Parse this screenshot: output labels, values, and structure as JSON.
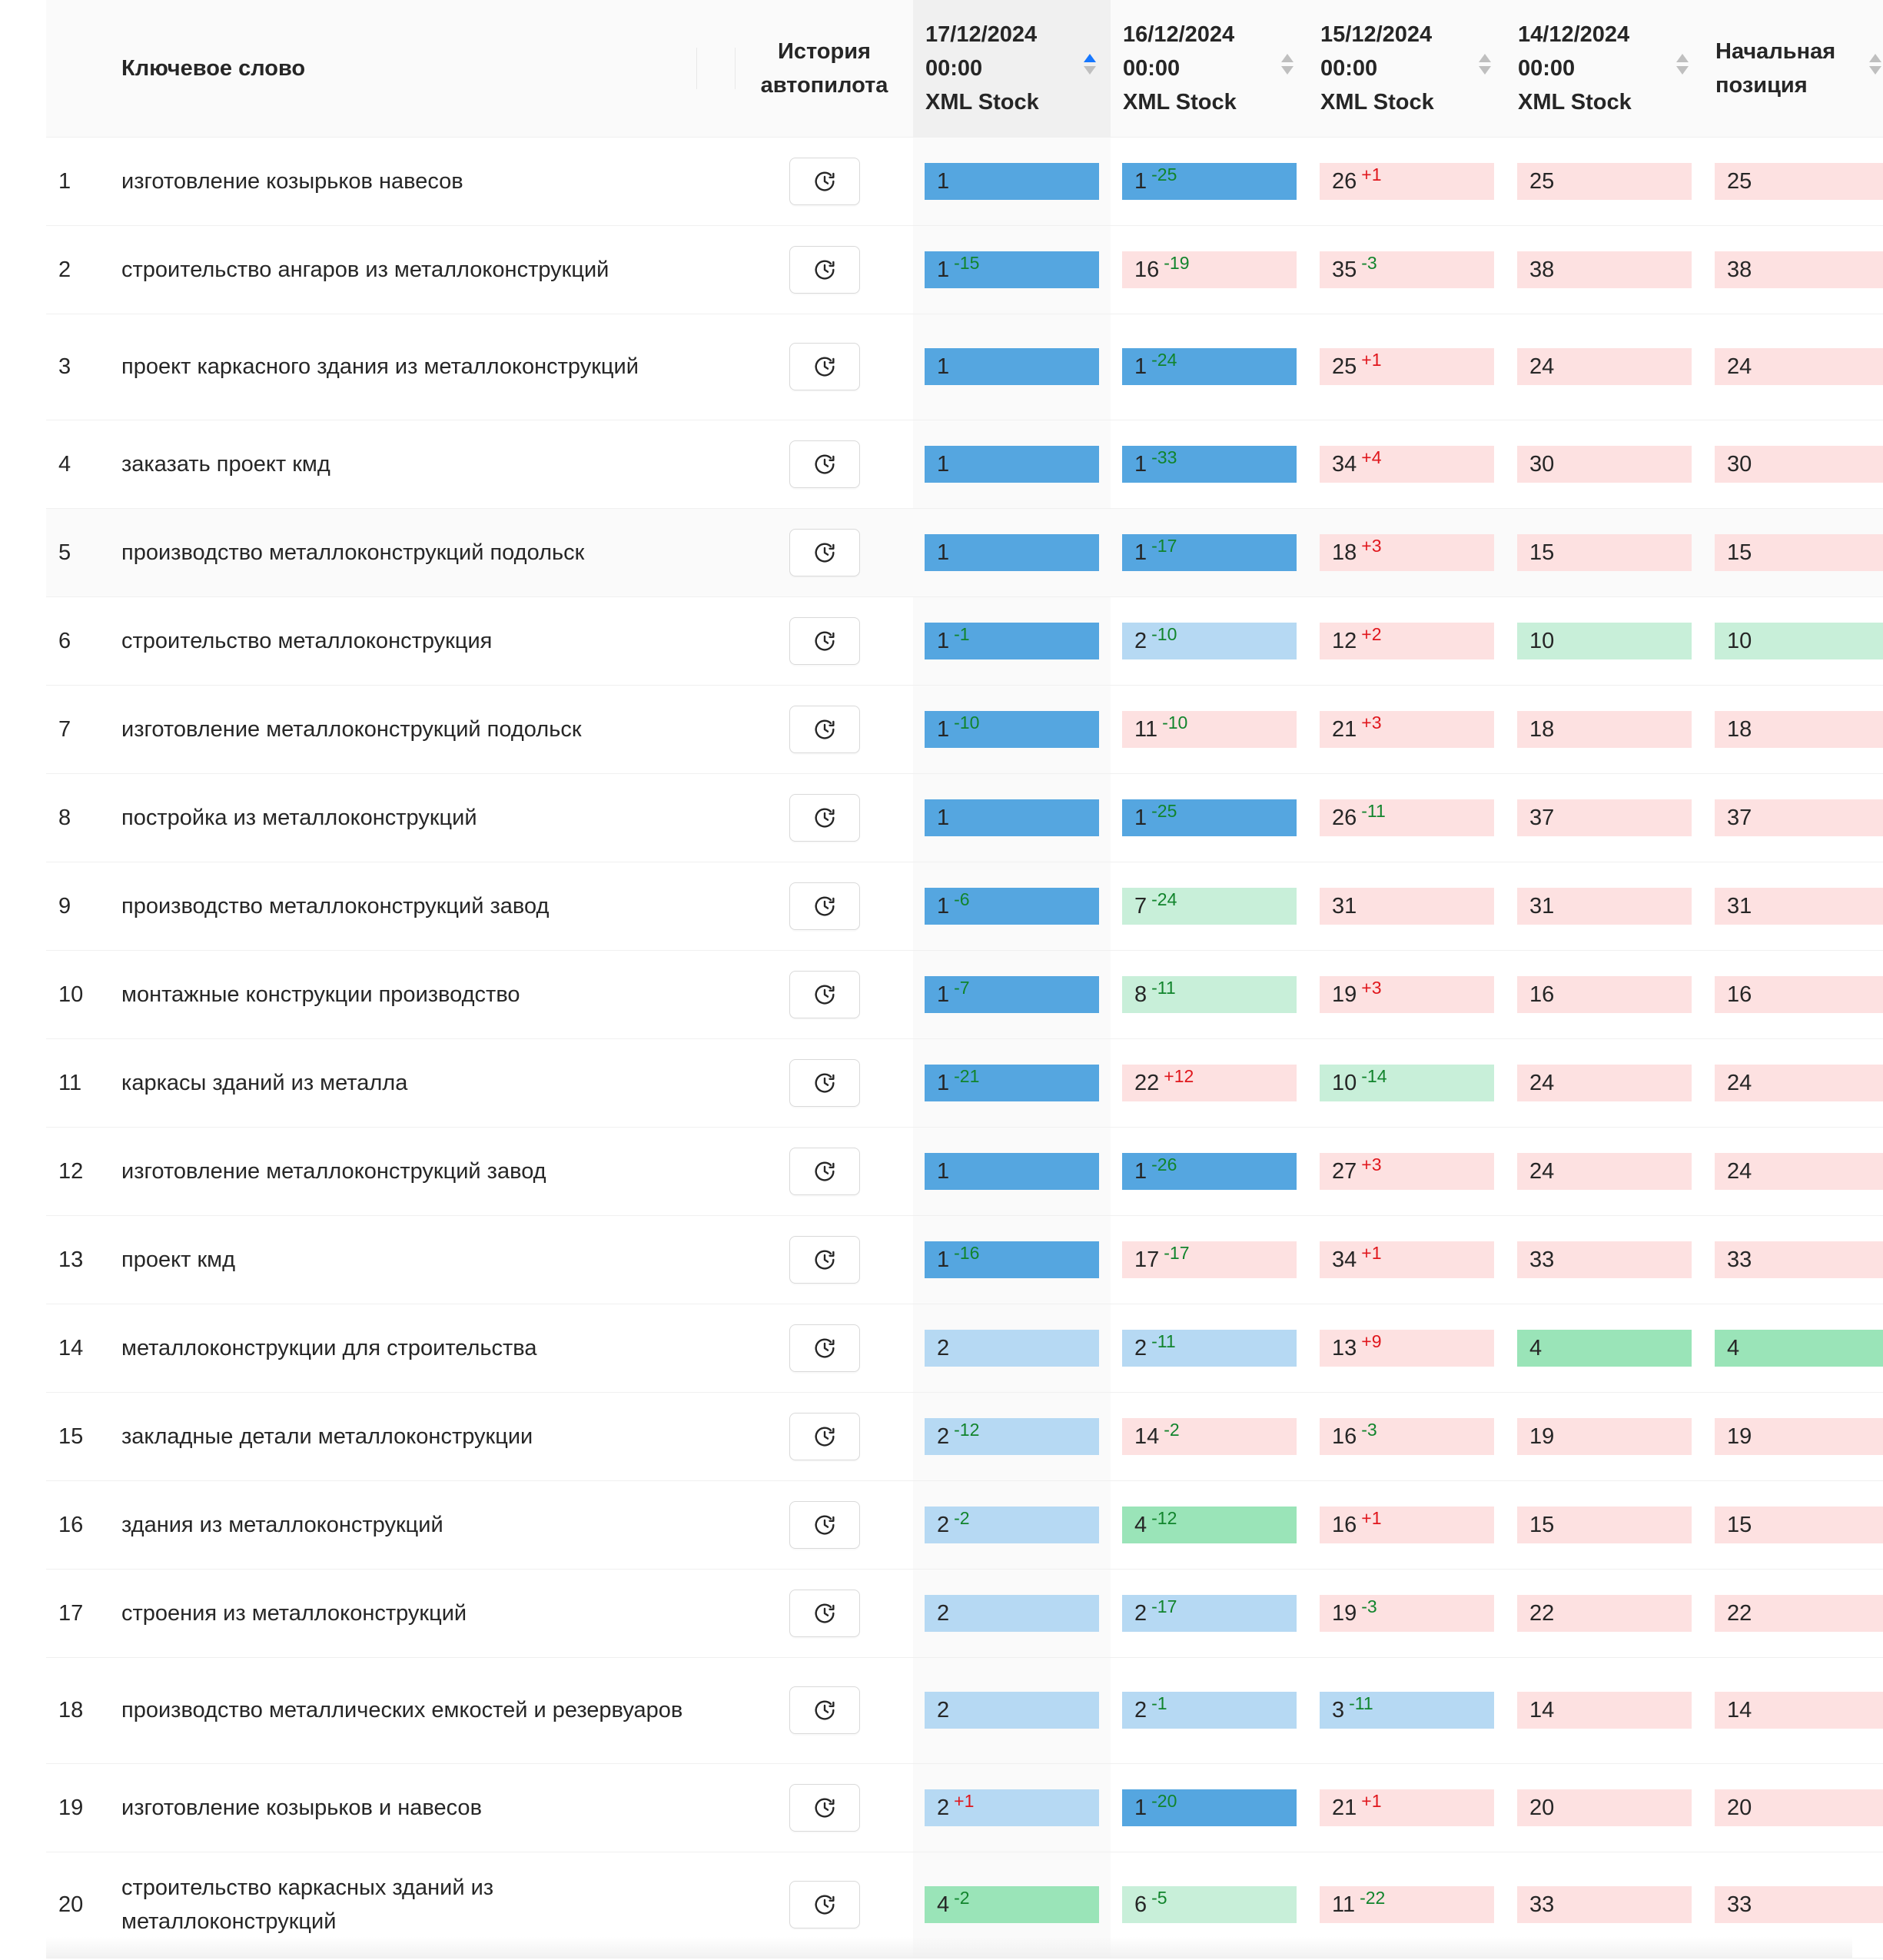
{
  "header": {
    "keyword": "Ключевое слово",
    "history_l1": "История",
    "history_l2": "автопилота",
    "dates": [
      {
        "date": "17/12/2024",
        "time": "00:00",
        "source": "XML Stock",
        "sorted": true
      },
      {
        "date": "16/12/2024",
        "time": "00:00",
        "source": "XML Stock",
        "sorted": false
      },
      {
        "date": "15/12/2024",
        "time": "00:00",
        "source": "XML Stock",
        "sorted": false
      },
      {
        "date": "14/12/2024",
        "time": "00:00",
        "source": "XML Stock",
        "sorted": false
      }
    ],
    "start_l1": "Начальная",
    "start_l2": "позиция"
  },
  "colors": {
    "top1": "#55a6e0",
    "top3": "#b6d9f3",
    "top5": "#9ae4b8",
    "top10": "#c8efd9",
    "low": "#fde1e1",
    "delta_neg": "#11842c",
    "delta_pos": "#e0161c",
    "sort_active": "#1677ff"
  },
  "icons": {
    "history": "history-clock-icon",
    "sort": "sort-caret-icon"
  },
  "rows": [
    {
      "n": "1",
      "kw": "изготовление козырьков навесов",
      "wrap": false,
      "cells": [
        [
          "1",
          ""
        ],
        [
          "1",
          "-25"
        ],
        [
          "26",
          "+1"
        ],
        [
          "25",
          ""
        ]
      ],
      "start": "25"
    },
    {
      "n": "2",
      "kw": "строительство ангаров из металлоконструкций",
      "wrap": false,
      "cells": [
        [
          "1",
          "-15"
        ],
        [
          "16",
          "-19"
        ],
        [
          "35",
          "-3"
        ],
        [
          "38",
          ""
        ]
      ],
      "start": "38"
    },
    {
      "n": "3",
      "kw": "проект каркасного здания из металлоконструкций",
      "wrap": true,
      "cells": [
        [
          "1",
          ""
        ],
        [
          "1",
          "-24"
        ],
        [
          "25",
          "+1"
        ],
        [
          "24",
          ""
        ]
      ],
      "start": "24"
    },
    {
      "n": "4",
      "kw": "заказать проект кмд",
      "wrap": false,
      "cells": [
        [
          "1",
          ""
        ],
        [
          "1",
          "-33"
        ],
        [
          "34",
          "+4"
        ],
        [
          "30",
          ""
        ]
      ],
      "start": "30"
    },
    {
      "n": "5",
      "kw": "производство металлоконструкций подольск",
      "wrap": false,
      "hover": true,
      "cells": [
        [
          "1",
          ""
        ],
        [
          "1",
          "-17"
        ],
        [
          "18",
          "+3"
        ],
        [
          "15",
          ""
        ]
      ],
      "start": "15"
    },
    {
      "n": "6",
      "kw": "строительство металлоконструкция",
      "wrap": false,
      "cells": [
        [
          "1",
          "-1"
        ],
        [
          "2",
          "-10"
        ],
        [
          "12",
          "+2"
        ],
        [
          "10",
          ""
        ]
      ],
      "start": "10"
    },
    {
      "n": "7",
      "kw": "изготовление металлоконструкций подольск",
      "wrap": false,
      "cells": [
        [
          "1",
          "-10"
        ],
        [
          "11",
          "-10"
        ],
        [
          "21",
          "+3"
        ],
        [
          "18",
          ""
        ]
      ],
      "start": "18"
    },
    {
      "n": "8",
      "kw": "постройка из металлоконструкций",
      "wrap": false,
      "cells": [
        [
          "1",
          ""
        ],
        [
          "1",
          "-25"
        ],
        [
          "26",
          "-11"
        ],
        [
          "37",
          ""
        ]
      ],
      "start": "37"
    },
    {
      "n": "9",
      "kw": "производство металлоконструкций завод",
      "wrap": false,
      "cells": [
        [
          "1",
          "-6"
        ],
        [
          "7",
          "-24"
        ],
        [
          "31",
          ""
        ],
        [
          "31",
          ""
        ]
      ],
      "start": "31"
    },
    {
      "n": "10",
      "kw": "монтажные конструкции производство",
      "wrap": false,
      "cells": [
        [
          "1",
          "-7"
        ],
        [
          "8",
          "-11"
        ],
        [
          "19",
          "+3"
        ],
        [
          "16",
          ""
        ]
      ],
      "start": "16"
    },
    {
      "n": "11",
      "kw": "каркасы зданий из металла",
      "wrap": false,
      "cells": [
        [
          "1",
          "-21"
        ],
        [
          "22",
          "+12"
        ],
        [
          "10",
          "-14"
        ],
        [
          "24",
          ""
        ]
      ],
      "start": "24"
    },
    {
      "n": "12",
      "kw": "изготовление металлоконструкций завод",
      "wrap": false,
      "cells": [
        [
          "1",
          ""
        ],
        [
          "1",
          "-26"
        ],
        [
          "27",
          "+3"
        ],
        [
          "24",
          ""
        ]
      ],
      "start": "24"
    },
    {
      "n": "13",
      "kw": "проект кмд",
      "wrap": false,
      "cells": [
        [
          "1",
          "-16"
        ],
        [
          "17",
          "-17"
        ],
        [
          "34",
          "+1"
        ],
        [
          "33",
          ""
        ]
      ],
      "start": "33"
    },
    {
      "n": "14",
      "kw": "металлоконструкции для строительства",
      "wrap": false,
      "cells": [
        [
          "2",
          ""
        ],
        [
          "2",
          "-11"
        ],
        [
          "13",
          "+9"
        ],
        [
          "4",
          ""
        ]
      ],
      "start": "4"
    },
    {
      "n": "15",
      "kw": "закладные детали металлоконструкции",
      "wrap": false,
      "cells": [
        [
          "2",
          "-12"
        ],
        [
          "14",
          "-2"
        ],
        [
          "16",
          "-3"
        ],
        [
          "19",
          ""
        ]
      ],
      "start": "19"
    },
    {
      "n": "16",
      "kw": "здания из металлоконструкций",
      "wrap": false,
      "cells": [
        [
          "2",
          "-2"
        ],
        [
          "4",
          "-12"
        ],
        [
          "16",
          "+1"
        ],
        [
          "15",
          ""
        ]
      ],
      "start": "15"
    },
    {
      "n": "17",
      "kw": "строения из металлоконструкций",
      "wrap": false,
      "cells": [
        [
          "2",
          ""
        ],
        [
          "2",
          "-17"
        ],
        [
          "19",
          "-3"
        ],
        [
          "22",
          ""
        ]
      ],
      "start": "22"
    },
    {
      "n": "18",
      "kw": "производство металлических емкостей и резервуаров",
      "wrap": true,
      "cells": [
        [
          "2",
          ""
        ],
        [
          "2",
          "-1"
        ],
        [
          "3",
          "-11"
        ],
        [
          "14",
          ""
        ]
      ],
      "start": "14"
    },
    {
      "n": "19",
      "kw": "изготовление козырьков и навесов",
      "wrap": false,
      "cells": [
        [
          "2",
          "+1"
        ],
        [
          "1",
          "-20"
        ],
        [
          "21",
          "+1"
        ],
        [
          "20",
          ""
        ]
      ],
      "start": "20"
    },
    {
      "n": "20",
      "kw": "строительство каркасных зданий из металлоконструкций",
      "wrap": true,
      "cells": [
        [
          "4",
          "-2"
        ],
        [
          "6",
          "-5"
        ],
        [
          "11",
          "-22"
        ],
        [
          "33",
          ""
        ]
      ],
      "start": "33"
    }
  ]
}
